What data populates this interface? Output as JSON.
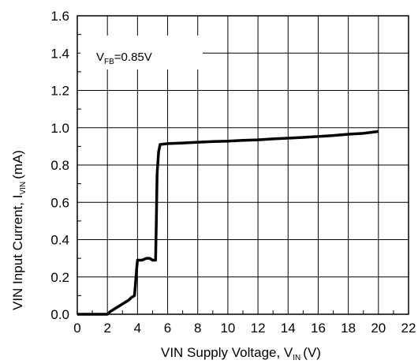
{
  "chart_data": {
    "type": "line",
    "xlabel_main": "VIN Supply Voltage, V",
    "xlabel_sub": "IN",
    "xlabel_unit": "(V)",
    "ylabel_main": "VIN Input Current, I",
    "ylabel_sub": "VIN",
    "ylabel_unit": "(mA)",
    "annotation_main": "V",
    "annotation_sub": "FB",
    "annotation_rest": "=0.85V",
    "xlim": [
      0,
      22
    ],
    "ylim": [
      0,
      1.6
    ],
    "x_ticks": [
      "0",
      "2",
      "4",
      "6",
      "8",
      "10",
      "12",
      "14",
      "16",
      "18",
      "20",
      "22"
    ],
    "y_ticks": [
      "0.0",
      "0.2",
      "0.4",
      "0.6",
      "0.8",
      "1.0",
      "1.2",
      "1.4",
      "1.6"
    ],
    "grid": true,
    "series": [
      {
        "x": [
          0,
          1.5,
          2.0,
          2.2,
          2.5,
          2.8,
          3.0,
          3.2,
          3.4,
          3.6,
          3.8,
          3.9,
          3.95,
          4.0,
          4.3,
          4.6,
          4.8,
          5.0,
          5.1,
          5.2,
          5.25,
          5.3,
          5.4,
          5.5,
          6.0,
          7.0,
          8.0,
          9.0,
          10.0,
          11.0,
          12.0,
          13.0,
          14.0,
          15.0,
          16.0,
          17.0,
          18.0,
          19.0,
          19.5,
          20.0
        ],
        "y": [
          0.0,
          0.0,
          0.0,
          0.015,
          0.03,
          0.045,
          0.055,
          0.065,
          0.075,
          0.09,
          0.1,
          0.2,
          0.25,
          0.29,
          0.29,
          0.3,
          0.3,
          0.29,
          0.29,
          0.29,
          0.5,
          0.75,
          0.87,
          0.91,
          0.915,
          0.918,
          0.922,
          0.926,
          0.928,
          0.932,
          0.935,
          0.94,
          0.944,
          0.948,
          0.953,
          0.958,
          0.965,
          0.97,
          0.975,
          0.98
        ]
      }
    ]
  }
}
